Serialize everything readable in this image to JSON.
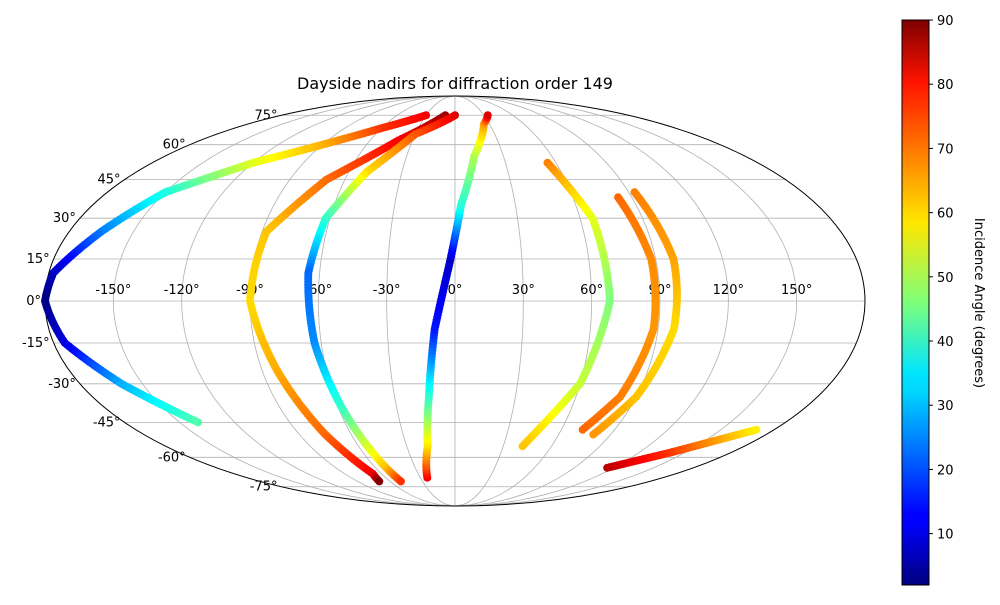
{
  "chart_data": {
    "type": "scatter",
    "projection": "mollweide",
    "title": "Dayside nadirs for diffraction order 149",
    "grid": true,
    "x_ticks": [
      "-150°",
      "-120°",
      "-90°",
      "-60°",
      "-30°",
      "0°",
      "30°",
      "60°",
      "90°",
      "120°",
      "150°"
    ],
    "y_ticks": [
      "75°",
      "60°",
      "45°",
      "30°",
      "15°",
      "0°",
      "-15°",
      "-30°",
      "-45°",
      "-60°",
      "-75°"
    ],
    "colorbar": {
      "label": "Incidence Angle (degrees)",
      "min": 2,
      "max": 90,
      "ticks": [
        "10",
        "20",
        "30",
        "40",
        "50",
        "60",
        "70",
        "80",
        "90"
      ],
      "colormap": "jet"
    },
    "series": [
      {
        "points": [
          [
            -30,
            75,
            80
          ],
          [
            -60,
            68,
            75
          ],
          [
            -90,
            60,
            64
          ],
          [
            -120,
            52,
            55
          ],
          [
            -150,
            40,
            38
          ],
          [
            -165,
            25,
            24
          ],
          [
            -178,
            10,
            8
          ],
          [
            -180,
            0,
            2
          ],
          [
            -175,
            -15,
            10
          ],
          [
            -160,
            -30,
            28
          ],
          [
            -140,
            -45,
            42
          ]
        ]
      },
      {
        "points": [
          [
            -10,
            75,
            88
          ],
          [
            -40,
            62,
            80
          ],
          [
            -70,
            45,
            70
          ],
          [
            -88,
            25,
            62
          ],
          [
            -90,
            0,
            60
          ],
          [
            -83,
            -25,
            64
          ],
          [
            -75,
            -50,
            70
          ],
          [
            -67,
            -68,
            80
          ],
          [
            -70,
            -72,
            90
          ]
        ]
      },
      {
        "points": [
          [
            0,
            75,
            82
          ],
          [
            -30,
            65,
            72
          ],
          [
            -50,
            48,
            60
          ],
          [
            -62,
            30,
            40
          ],
          [
            -65,
            10,
            22
          ],
          [
            -63,
            -15,
            25
          ],
          [
            -58,
            -40,
            40
          ],
          [
            -52,
            -65,
            62
          ],
          [
            -50,
            -72,
            75
          ]
        ]
      },
      {
        "points": [
          [
            -24,
            -70,
            80
          ],
          [
            -17,
            -55,
            60
          ],
          [
            -13,
            -35,
            40
          ],
          [
            -9,
            -10,
            15
          ],
          [
            -2,
            15,
            8
          ],
          [
            3,
            35,
            38
          ],
          [
            12,
            55,
            50
          ],
          [
            25,
            70,
            65
          ],
          [
            34,
            75,
            82
          ]
        ]
      },
      {
        "points": [
          [
            55,
            52,
            68
          ],
          [
            66,
            30,
            55
          ],
          [
            68,
            0,
            46
          ],
          [
            60,
            -30,
            52
          ],
          [
            42,
            -55,
            62
          ]
        ]
      },
      {
        "points": [
          [
            83,
            38,
            70
          ],
          [
            88,
            15,
            67
          ],
          [
            88,
            -10,
            66
          ],
          [
            82,
            -35,
            68
          ],
          [
            72,
            -48,
            70
          ]
        ]
      },
      {
        "points": [
          [
            93,
            40,
            68
          ],
          [
            98,
            15,
            65
          ],
          [
            97,
            -10,
            60
          ],
          [
            90,
            -35,
            62
          ],
          [
            80,
            -50,
            66
          ]
        ]
      },
      {
        "points": [
          [
            115,
            -65,
            85
          ],
          [
            140,
            -58,
            75
          ],
          [
            170,
            -48,
            58
          ]
        ]
      }
    ]
  }
}
